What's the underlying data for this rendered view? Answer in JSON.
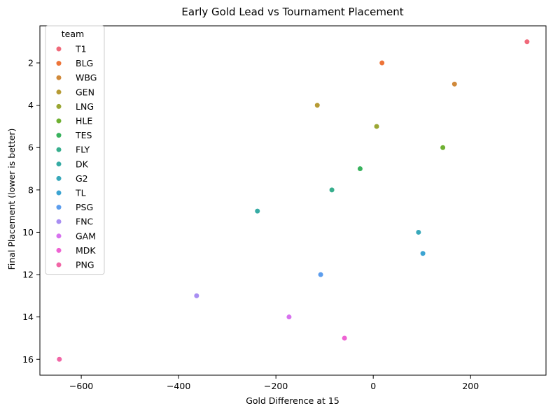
{
  "chart_data": {
    "type": "scatter",
    "title": "Early Gold Lead vs Tournament Placement",
    "xlabel": "Gold Difference at 15",
    "ylabel": "Final Placement (lower is better)",
    "xlim": [
      -685,
      355
    ],
    "ylim": [
      16.75,
      0.25
    ],
    "y_inverted": true,
    "x_ticks": [
      -600,
      -400,
      -200,
      0,
      200
    ],
    "x_tick_labels": [
      "−600",
      "−400",
      "−200",
      "0",
      "200"
    ],
    "y_ticks": [
      2,
      4,
      6,
      8,
      10,
      12,
      14,
      16
    ],
    "y_tick_labels": [
      "2",
      "4",
      "6",
      "8",
      "10",
      "12",
      "14",
      "16"
    ],
    "grid": false,
    "legend_title": "team",
    "legend_position": "top-left",
    "series": [
      {
        "name": "T1",
        "color": "#f0697a",
        "x": 316,
        "y": 1
      },
      {
        "name": "BLG",
        "color": "#ed7438",
        "x": 18,
        "y": 2
      },
      {
        "name": "WBG",
        "color": "#d0893a",
        "x": 167,
        "y": 3
      },
      {
        "name": "GEN",
        "color": "#b79b35",
        "x": -115,
        "y": 4
      },
      {
        "name": "LNG",
        "color": "#9aa633",
        "x": 7,
        "y": 5
      },
      {
        "name": "HLE",
        "color": "#6fb032",
        "x": 143,
        "y": 6
      },
      {
        "name": "TES",
        "color": "#39b25d",
        "x": -27,
        "y": 7
      },
      {
        "name": "FLY",
        "color": "#37ae8d",
        "x": -85,
        "y": 8
      },
      {
        "name": "DK",
        "color": "#36aba4",
        "x": -238,
        "y": 9
      },
      {
        "name": "G2",
        "color": "#38a8ba",
        "x": 93,
        "y": 10
      },
      {
        "name": "TL",
        "color": "#3ca4d2",
        "x": 102,
        "y": 11
      },
      {
        "name": "PSG",
        "color": "#5c9ded",
        "x": -108,
        "y": 12
      },
      {
        "name": "FNC",
        "color": "#a88ef2",
        "x": -363,
        "y": 13
      },
      {
        "name": "GAM",
        "color": "#d772ee",
        "x": -173,
        "y": 14
      },
      {
        "name": "MDK",
        "color": "#ee63d3",
        "x": -59,
        "y": 15
      },
      {
        "name": "PNG",
        "color": "#f166a6",
        "x": -645,
        "y": 16
      }
    ]
  }
}
